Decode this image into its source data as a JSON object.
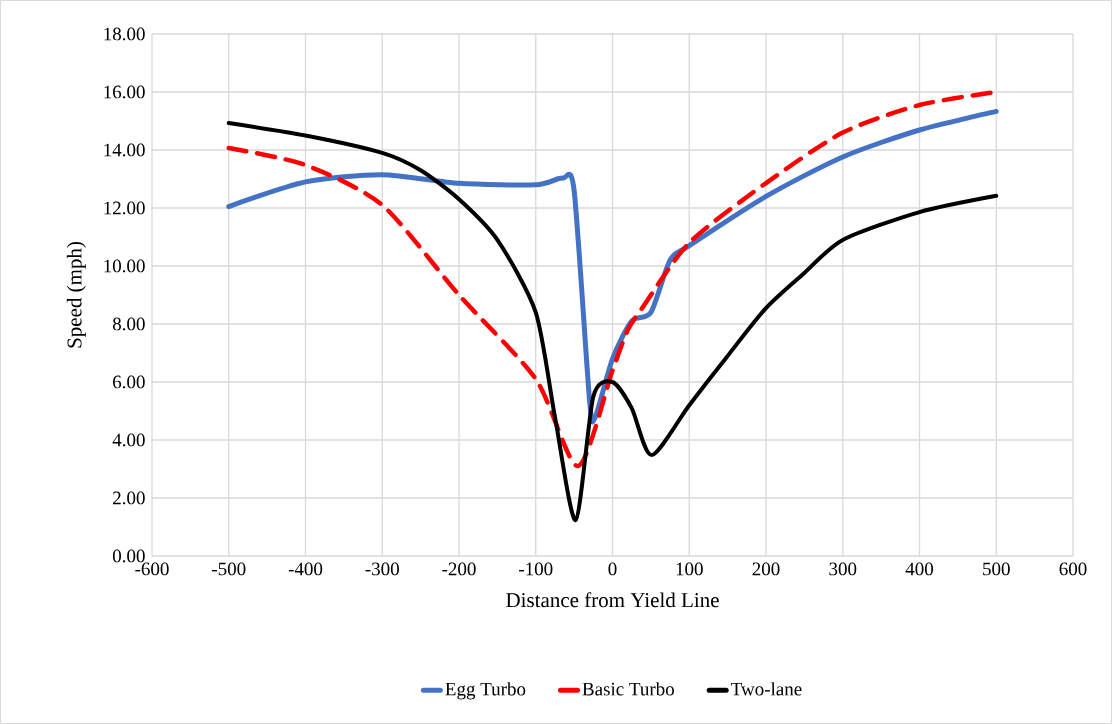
{
  "chart_data": {
    "type": "line",
    "xlabel": "Distance from Yield Line",
    "ylabel": "Speed (mph)",
    "xlim": [
      -600,
      600
    ],
    "xticks": [
      -600,
      -500,
      -400,
      -300,
      -200,
      -100,
      0,
      100,
      200,
      300,
      400,
      500,
      600
    ],
    "ylim": [
      0,
      18
    ],
    "yticks": [
      {
        "value": 0,
        "label": "0.00"
      },
      {
        "value": 2,
        "label": "2.00"
      },
      {
        "value": 4,
        "label": "4.00"
      },
      {
        "value": 6,
        "label": "6.00"
      },
      {
        "value": 8,
        "label": "8.00"
      },
      {
        "value": 10,
        "label": "10.00"
      },
      {
        "value": 12,
        "label": "12.00"
      },
      {
        "value": 14,
        "label": "14.00"
      },
      {
        "value": 16,
        "label": "16.00"
      },
      {
        "value": 18,
        "label": "18.00"
      }
    ],
    "grid": true,
    "legend": "bottom",
    "marker": "none",
    "series": [
      {
        "name": "Egg Turbo",
        "color": "#4472c4",
        "line_style": "solid",
        "x": [
          -500,
          -400,
          -300,
          -200,
          -100,
          -65,
          -50,
          -30,
          -23,
          0,
          25,
          50,
          75,
          100,
          200,
          300,
          400,
          500
        ],
        "values": [
          12.05,
          12.9,
          13.15,
          12.85,
          12.8,
          13.03,
          12.6,
          5.4,
          4.76,
          6.8,
          8.1,
          8.4,
          10.2,
          10.7,
          12.4,
          13.76,
          14.69,
          15.33
        ]
      },
      {
        "name": "Basic Turbo",
        "color": "#ff0000",
        "line_style": "dashed",
        "x": [
          -500,
          -400,
          -300,
          -200,
          -100,
          -45,
          0,
          20,
          40,
          100,
          200,
          300,
          400,
          500
        ],
        "values": [
          14.07,
          13.48,
          12.1,
          9.0,
          6.1,
          3.1,
          6.4,
          7.8,
          8.6,
          10.8,
          12.86,
          14.6,
          15.55,
          16.0
        ]
      },
      {
        "name": "Two-lane",
        "color": "#000000",
        "line_style": "solid",
        "x": [
          -500,
          -400,
          -300,
          -250,
          -200,
          -150,
          -100,
          -75,
          -48,
          -25,
          0,
          25,
          51,
          100,
          150,
          200,
          250,
          300,
          400,
          500
        ],
        "values": [
          14.93,
          14.5,
          13.9,
          13.3,
          12.3,
          10.9,
          8.4,
          4.8,
          1.24,
          5.5,
          6.0,
          5.1,
          3.48,
          5.2,
          6.9,
          8.55,
          9.76,
          10.9,
          11.86,
          12.42
        ]
      }
    ]
  }
}
